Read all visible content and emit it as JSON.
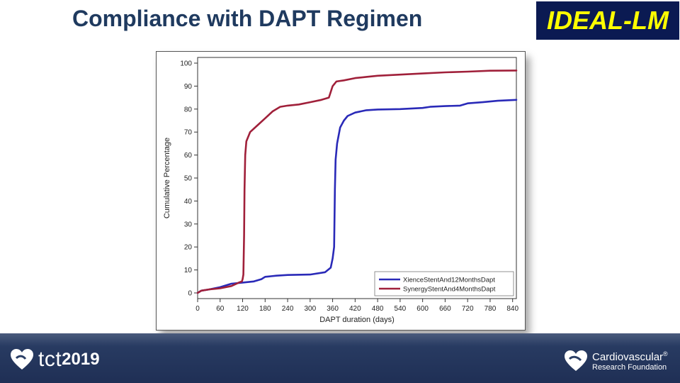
{
  "slide": {
    "title": "Compliance with DAPT Regimen",
    "badge": "IDEAL-LM"
  },
  "footer": {
    "tct_text": "tct",
    "tct_year": "2019",
    "crf_line1": "Cardiovascular",
    "crf_reg": "®",
    "crf_line2": "Research Foundation"
  },
  "colors": {
    "title": "#1f3a5f",
    "badge_bg": "#0b1a52",
    "badge_text": "#ffff00",
    "series_blue": "#2a2ab8",
    "series_red": "#a0203a",
    "footer_bg": "#2b3f66"
  },
  "icons": [
    "tct-heart-icon",
    "crf-heart-icon"
  ],
  "chart_data": {
    "type": "line",
    "xlabel": "DAPT duration (days)",
    "ylabel": "Cumulative Percentage",
    "xlim": [
      0,
      850
    ],
    "ylim": [
      0,
      100
    ],
    "xticks": [
      0,
      60,
      120,
      180,
      240,
      300,
      360,
      420,
      480,
      540,
      600,
      660,
      720,
      780,
      840
    ],
    "yticks": [
      0,
      10,
      20,
      30,
      40,
      50,
      60,
      70,
      80,
      90,
      100
    ],
    "grid": false,
    "legend_position": "bottom-right",
    "series": [
      {
        "name": "XienceStentAnd12MonthsDapt",
        "color": "#2a2ab8",
        "points": [
          [
            0,
            0
          ],
          [
            10,
            1
          ],
          [
            30,
            1.5
          ],
          [
            60,
            2.5
          ],
          [
            90,
            4
          ],
          [
            120,
            4.5
          ],
          [
            150,
            5
          ],
          [
            170,
            6
          ],
          [
            180,
            7
          ],
          [
            210,
            7.5
          ],
          [
            240,
            7.8
          ],
          [
            300,
            8
          ],
          [
            340,
            9
          ],
          [
            355,
            11
          ],
          [
            360,
            15
          ],
          [
            364,
            20
          ],
          [
            366,
            45
          ],
          [
            368,
            58
          ],
          [
            372,
            65
          ],
          [
            380,
            72
          ],
          [
            390,
            75
          ],
          [
            400,
            77
          ],
          [
            420,
            78.5
          ],
          [
            450,
            79.5
          ],
          [
            480,
            79.8
          ],
          [
            540,
            80
          ],
          [
            600,
            80.5
          ],
          [
            620,
            81
          ],
          [
            660,
            81.3
          ],
          [
            700,
            81.5
          ],
          [
            720,
            82.5
          ],
          [
            760,
            83
          ],
          [
            800,
            83.6
          ],
          [
            850,
            84
          ]
        ]
      },
      {
        "name": "SynergyStentAnd4MonthsDapt",
        "color": "#a0203a",
        "points": [
          [
            0,
            0
          ],
          [
            10,
            1
          ],
          [
            30,
            1.5
          ],
          [
            60,
            2
          ],
          [
            90,
            3
          ],
          [
            110,
            4.5
          ],
          [
            118,
            5
          ],
          [
            120,
            6
          ],
          [
            122,
            8
          ],
          [
            124,
            25
          ],
          [
            125,
            45
          ],
          [
            127,
            60
          ],
          [
            130,
            66
          ],
          [
            140,
            70
          ],
          [
            160,
            73
          ],
          [
            180,
            76
          ],
          [
            200,
            79
          ],
          [
            220,
            81
          ],
          [
            240,
            81.5
          ],
          [
            270,
            82
          ],
          [
            300,
            83
          ],
          [
            330,
            84
          ],
          [
            350,
            85
          ],
          [
            360,
            90
          ],
          [
            370,
            92
          ],
          [
            390,
            92.5
          ],
          [
            420,
            93.5
          ],
          [
            450,
            94
          ],
          [
            480,
            94.5
          ],
          [
            540,
            95
          ],
          [
            600,
            95.5
          ],
          [
            660,
            96
          ],
          [
            720,
            96.3
          ],
          [
            780,
            96.7
          ],
          [
            850,
            96.8
          ]
        ]
      }
    ]
  }
}
